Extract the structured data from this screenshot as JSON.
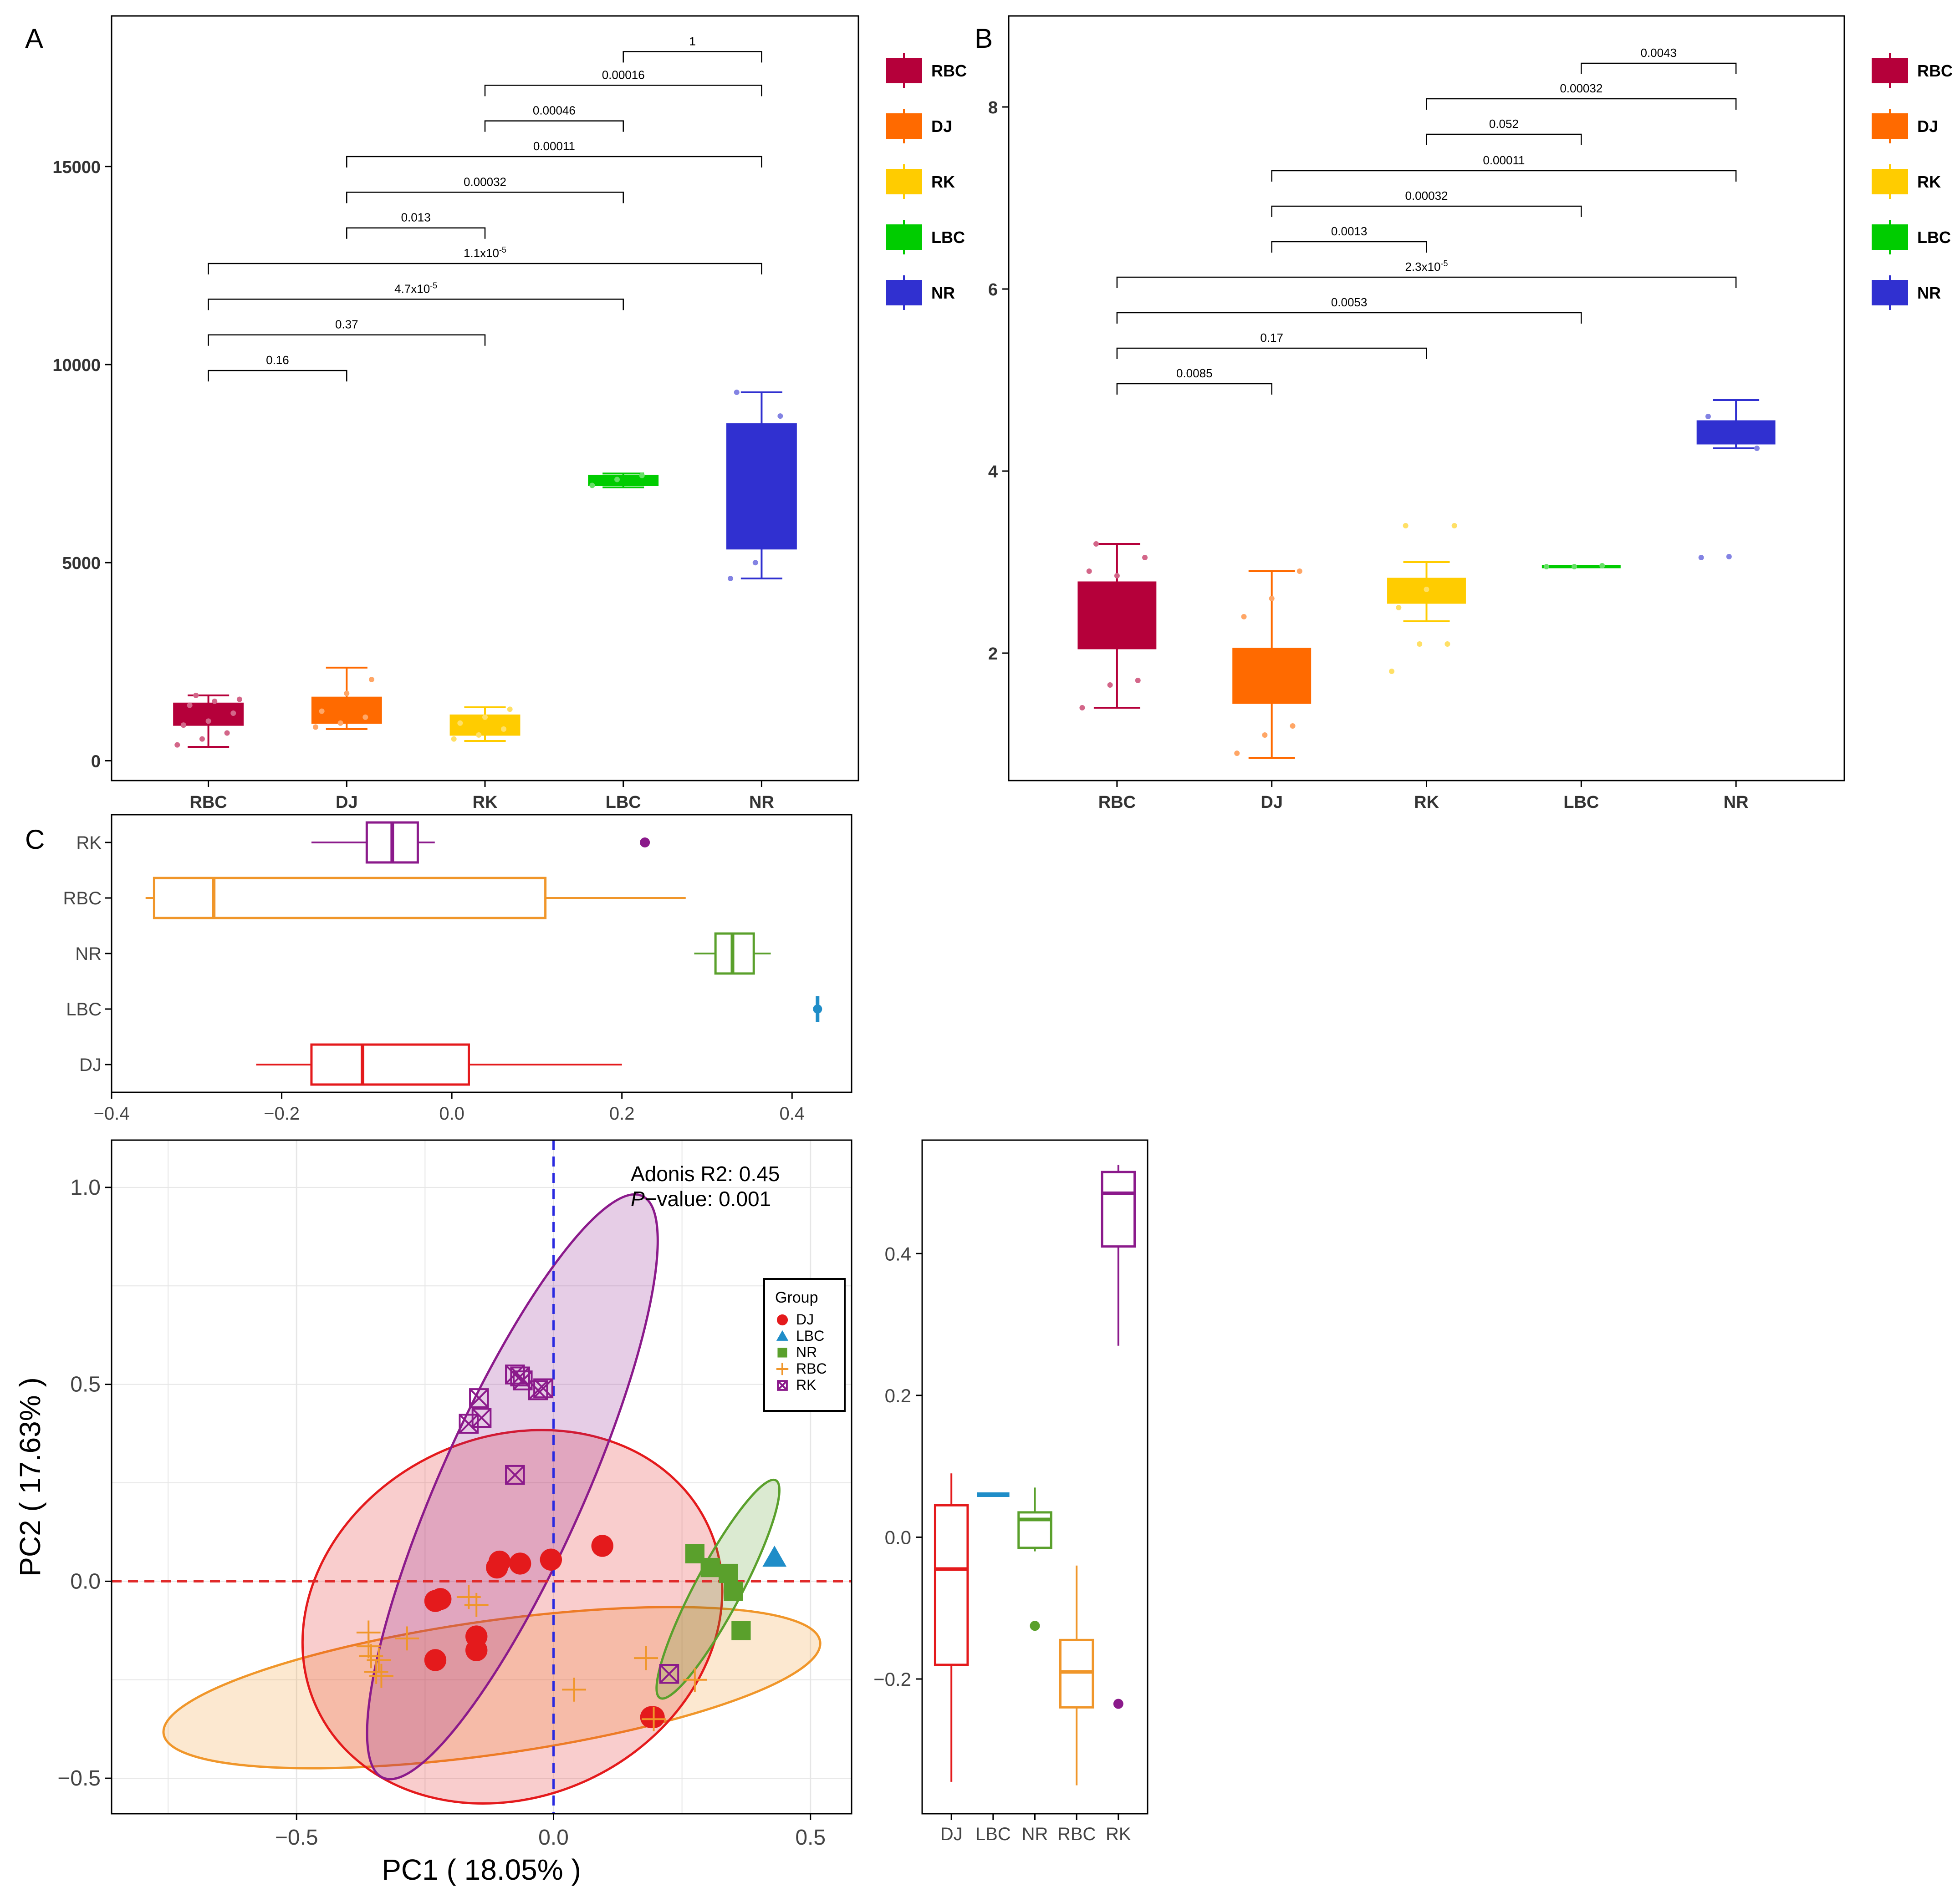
{
  "colors": {
    "RBC": "#b5003a",
    "DJ": "#ff6a00",
    "RK": "#ffcc00",
    "LBC": "#00cc00",
    "NR": "#3030d0",
    "pcoa_DJ": "#e41a1c",
    "pcoa_LBC": "#1f8dc8",
    "pcoa_NR": "#5aa02c",
    "pcoa_RBC": "#f0962a",
    "pcoa_RK": "#8b1a8b"
  },
  "chart_data": [
    {
      "id": "A",
      "panel_label": "A",
      "type": "box",
      "categories": [
        "RBC",
        "DJ",
        "RK",
        "LBC",
        "NR"
      ],
      "ylim": [
        -500,
        18800
      ],
      "yticks": [
        "0",
        "5000",
        "10000",
        "15000"
      ],
      "ytick_values": [
        0,
        5000,
        10000,
        15000
      ],
      "boxes": [
        {
          "group": "RBC",
          "min": 350,
          "q1": 900,
          "median": 1100,
          "q3": 1450,
          "max": 1650,
          "points": [
            400,
            550,
            700,
            900,
            1000,
            1200,
            1400,
            1500,
            1550,
            1650
          ]
        },
        {
          "group": "DJ",
          "min": 800,
          "q1": 950,
          "median": 1200,
          "q3": 1600,
          "max": 2350,
          "points": [
            850,
            950,
            1100,
            1250,
            1700,
            2050
          ]
        },
        {
          "group": "RK",
          "min": 500,
          "q1": 650,
          "median": 850,
          "q3": 1150,
          "max": 1350,
          "points": [
            550,
            650,
            800,
            950,
            1100,
            1300
          ]
        },
        {
          "group": "LBC",
          "min": 6900,
          "q1": 6950,
          "median": 7050,
          "q3": 7200,
          "max": 7250,
          "points": [
            6950,
            7100,
            7200
          ]
        },
        {
          "group": "NR",
          "min": 4600,
          "q1": 5350,
          "median": 7000,
          "q3": 8500,
          "max": 9300,
          "points": [
            4600,
            5000,
            8700,
            9300
          ]
        }
      ],
      "brackets": [
        {
          "from": "LBC",
          "to": "NR",
          "y": 17900,
          "label": "1"
        },
        {
          "from": "RK",
          "to": "NR",
          "y": 17050,
          "label": "0.00016"
        },
        {
          "from": "RK",
          "to": "LBC",
          "y": 16150,
          "label": "0.00046"
        },
        {
          "from": "DJ",
          "to": "NR",
          "y": 15250,
          "label": "0.00011"
        },
        {
          "from": "DJ",
          "to": "LBC",
          "y": 14350,
          "label": "0.00032"
        },
        {
          "from": "DJ",
          "to": "RK",
          "y": 13450,
          "label": "0.013"
        },
        {
          "from": "RBC",
          "to": "NR",
          "y": 12550,
          "label": "1.1x10",
          "sup": "-5"
        },
        {
          "from": "RBC",
          "to": "LBC",
          "y": 11650,
          "label": "4.7x10",
          "sup": "-5"
        },
        {
          "from": "RBC",
          "to": "RK",
          "y": 10750,
          "label": "0.37"
        },
        {
          "from": "RBC",
          "to": "DJ",
          "y": 9850,
          "label": "0.16"
        }
      ],
      "legend": [
        "RBC",
        "DJ",
        "RK",
        "LBC",
        "NR"
      ]
    },
    {
      "id": "B",
      "panel_label": "B",
      "type": "box",
      "categories": [
        "RBC",
        "DJ",
        "RK",
        "LBC",
        "NR"
      ],
      "ylim": [
        0.6,
        9.0
      ],
      "yticks": [
        "2",
        "4",
        "6",
        "8"
      ],
      "ytick_values": [
        2,
        4,
        6,
        8
      ],
      "boxes": [
        {
          "group": "RBC",
          "min": 1.4,
          "q1": 2.05,
          "median": 2.1,
          "q3": 2.78,
          "max": 3.2,
          "points": [
            1.4,
            1.65,
            1.7,
            2.9,
            2.85,
            3.05,
            3.2
          ]
        },
        {
          "group": "DJ",
          "min": 0.85,
          "q1": 1.45,
          "median": 1.5,
          "q3": 2.05,
          "max": 2.9,
          "points": [
            0.9,
            1.1,
            1.2,
            2.4,
            2.6,
            2.9
          ]
        },
        {
          "group": "RK",
          "min": 2.35,
          "q1": 2.55,
          "median": 2.65,
          "q3": 2.82,
          "max": 3.0,
          "points": [
            1.8,
            2.1,
            2.1,
            2.5,
            2.7,
            3.4,
            3.4
          ]
        },
        {
          "group": "LBC",
          "min": 2.95,
          "q1": 2.95,
          "median": 2.95,
          "q3": 2.96,
          "max": 2.96,
          "points": [
            2.95,
            2.95,
            2.96
          ]
        },
        {
          "group": "NR",
          "min": 4.25,
          "q1": 4.3,
          "median": 4.35,
          "q3": 4.55,
          "max": 4.78,
          "points": [
            3.05,
            3.06,
            4.25,
            4.6
          ]
        }
      ],
      "brackets": [
        {
          "from": "LBC",
          "to": "NR",
          "y": 8.48,
          "label": "0.0043"
        },
        {
          "from": "RK",
          "to": "NR",
          "y": 8.09,
          "label": "0.00032"
        },
        {
          "from": "RK",
          "to": "LBC",
          "y": 7.7,
          "label": "0.052"
        },
        {
          "from": "DJ",
          "to": "NR",
          "y": 7.3,
          "label": "0.00011"
        },
        {
          "from": "DJ",
          "to": "LBC",
          "y": 6.91,
          "label": "0.00032"
        },
        {
          "from": "DJ",
          "to": "RK",
          "y": 6.52,
          "label": "0.0013"
        },
        {
          "from": "RBC",
          "to": "NR",
          "y": 6.13,
          "label": "2.3x10",
          "sup": "-5"
        },
        {
          "from": "RBC",
          "to": "LBC",
          "y": 5.74,
          "label": "0.0053"
        },
        {
          "from": "RBC",
          "to": "RK",
          "y": 5.35,
          "label": "0.17"
        },
        {
          "from": "RBC",
          "to": "DJ",
          "y": 4.96,
          "label": "0.0085"
        }
      ],
      "legend": [
        "RBC",
        "DJ",
        "RK",
        "LBC",
        "NR"
      ]
    },
    {
      "id": "C_top",
      "panel_label": "C",
      "type": "box-horizontal",
      "categories": [
        "RK",
        "RBC",
        "NR",
        "LBC",
        "DJ"
      ],
      "xlim": [
        -0.4,
        0.47
      ],
      "xticks": [
        "−0.4",
        "−0.2",
        "0.0",
        "0.2",
        "0.4"
      ],
      "xtick_values": [
        -0.4,
        -0.2,
        0.0,
        0.2,
        0.4
      ],
      "boxes": [
        {
          "group": "RK",
          "min": -0.165,
          "q1": -0.1,
          "median": -0.07,
          "q3": -0.04,
          "max": -0.02,
          "outliers": [
            0.227
          ]
        },
        {
          "group": "RBC",
          "min": -0.36,
          "q1": -0.35,
          "median": -0.28,
          "q3": 0.11,
          "max": 0.275,
          "outliers": []
        },
        {
          "group": "NR",
          "min": 0.285,
          "q1": 0.31,
          "median": 0.33,
          "q3": 0.355,
          "max": 0.375,
          "outliers": []
        },
        {
          "group": "LBC",
          "min": 0.43,
          "q1": 0.43,
          "median": 0.43,
          "q3": 0.43,
          "max": 0.43,
          "outliers": []
        },
        {
          "group": "DJ",
          "min": -0.23,
          "q1": -0.165,
          "median": -0.105,
          "q3": 0.02,
          "max": 0.2,
          "outliers": []
        }
      ]
    },
    {
      "id": "C_scatter",
      "type": "scatter",
      "xlabel": "PC1 ( 18.05% )",
      "ylabel": "PC2 ( 17.63% )",
      "xlim": [
        -0.86,
        0.58
      ],
      "ylim": [
        -0.59,
        1.12
      ],
      "xticks": [
        "−0.5",
        "0.0",
        "0.5"
      ],
      "xtick_values": [
        -0.5,
        0.0,
        0.5
      ],
      "yticks": [
        "−0.5",
        "0.0",
        "0.5",
        "1.0"
      ],
      "ytick_values": [
        -0.5,
        0.0,
        0.5,
        1.0
      ],
      "annotation_line1": "Adonis R2: 0.45",
      "annotation_p": "P",
      "annotation_line2_rest": "−value: 0.001",
      "legend_title": "Group",
      "legend": [
        "DJ",
        "LBC",
        "NR",
        "RBC",
        "RK"
      ],
      "ellipses": [
        {
          "group": "RBC",
          "cx": -0.12,
          "cy": -0.27,
          "rx": 0.645,
          "ry": 0.13,
          "angle": -8
        },
        {
          "group": "DJ",
          "cx": -0.08,
          "cy": -0.09,
          "rx": 0.42,
          "ry": 0.35,
          "angle": -25
        },
        {
          "group": "RK",
          "cx": -0.08,
          "cy": 0.24,
          "rx": 0.62,
          "ry": 0.14,
          "angle": -66
        },
        {
          "group": "NR",
          "cx": 0.32,
          "cy": -0.02,
          "rx": 0.24,
          "ry": 0.045,
          "angle": -62
        }
      ],
      "points": {
        "DJ": [
          [
            -0.23,
            -0.05
          ],
          [
            -0.22,
            -0.045
          ],
          [
            -0.15,
            -0.14
          ],
          [
            -0.15,
            -0.175
          ],
          [
            -0.23,
            -0.2
          ],
          [
            -0.11,
            0.035
          ],
          [
            -0.105,
            0.05
          ],
          [
            -0.065,
            0.045
          ],
          [
            -0.005,
            0.055
          ],
          [
            0.095,
            0.09
          ],
          [
            0.19,
            -0.345
          ],
          [
            0.195,
            -0.345
          ]
        ],
        "LBC": [
          [
            0.43,
            0.06
          ]
        ],
        "NR": [
          [
            0.275,
            0.07
          ],
          [
            0.305,
            0.035
          ],
          [
            0.34,
            0.02
          ],
          [
            0.35,
            -0.025
          ],
          [
            0.365,
            -0.125
          ]
        ],
        "RBC": [
          [
            -0.36,
            -0.13
          ],
          [
            -0.36,
            -0.165
          ],
          [
            -0.355,
            -0.19
          ],
          [
            -0.345,
            -0.23
          ],
          [
            -0.34,
            -0.2
          ],
          [
            -0.335,
            -0.24
          ],
          [
            -0.285,
            -0.145
          ],
          [
            -0.165,
            -0.04
          ],
          [
            -0.15,
            -0.06
          ],
          [
            0.04,
            -0.275
          ],
          [
            0.18,
            -0.195
          ],
          [
            0.275,
            -0.25
          ],
          [
            0.195,
            -0.35
          ]
        ],
        "RK": [
          [
            -0.165,
            0.4
          ],
          [
            -0.14,
            0.415
          ],
          [
            -0.145,
            0.465
          ],
          [
            -0.075,
            0.525
          ],
          [
            -0.065,
            0.52
          ],
          [
            -0.06,
            0.51
          ],
          [
            -0.03,
            0.485
          ],
          [
            -0.02,
            0.49
          ],
          [
            -0.075,
            0.27
          ],
          [
            0.225,
            -0.235
          ]
        ]
      }
    },
    {
      "id": "C_right",
      "type": "box",
      "categories": [
        "DJ",
        "LBC",
        "NR",
        "RBC",
        "RK"
      ],
      "ylim": [
        -0.39,
        0.56
      ],
      "yticks": [
        "−0.2",
        "0.0",
        "0.2",
        "0.4"
      ],
      "ytick_values": [
        -0.2,
        0.0,
        0.2,
        0.4
      ],
      "boxes": [
        {
          "group": "DJ",
          "min": -0.345,
          "q1": -0.18,
          "median": -0.045,
          "q3": 0.045,
          "max": 0.09,
          "outliers": []
        },
        {
          "group": "LBC",
          "min": 0.06,
          "q1": 0.06,
          "median": 0.06,
          "q3": 0.06,
          "max": 0.06,
          "outliers": []
        },
        {
          "group": "NR",
          "min": -0.02,
          "q1": -0.015,
          "median": 0.025,
          "q3": 0.035,
          "max": 0.07,
          "outliers": [
            -0.125
          ]
        },
        {
          "group": "RBC",
          "min": -0.35,
          "q1": -0.24,
          "median": -0.19,
          "q3": -0.145,
          "max": -0.04,
          "outliers": []
        },
        {
          "group": "RK",
          "min": 0.27,
          "q1": 0.41,
          "median": 0.485,
          "q3": 0.515,
          "max": 0.525,
          "outliers": [
            -0.235
          ]
        }
      ]
    }
  ]
}
